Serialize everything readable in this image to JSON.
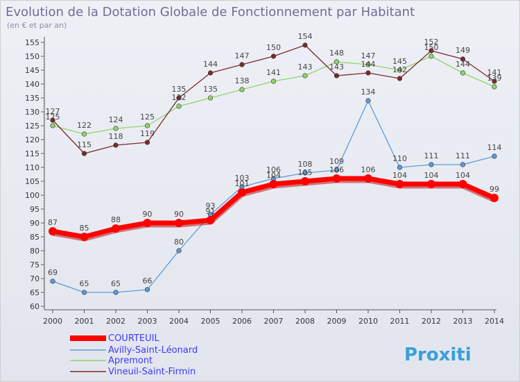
{
  "chart_data": {
    "type": "line",
    "title": "Evolution de la Dotation Globale de Fonctionnement par Habitant",
    "subtitle": "(en € et par an)",
    "categories": [
      "2000",
      "2001",
      "2002",
      "2003",
      "2004",
      "2005",
      "2006",
      "2007",
      "2008",
      "2009",
      "2010",
      "2011",
      "2012",
      "2013",
      "2014"
    ],
    "ylim": [
      60,
      155
    ],
    "yticks": [
      60,
      65,
      70,
      75,
      80,
      85,
      90,
      95,
      100,
      105,
      110,
      115,
      120,
      125,
      130,
      135,
      140,
      145,
      150,
      155
    ],
    "grid": false,
    "legend_position": "bottom-left",
    "series": [
      {
        "name": "COURTEUIL",
        "color": "#ff0000",
        "values": [
          87,
          85,
          88,
          90,
          90,
          91,
          101,
          104,
          105,
          106,
          106,
          104,
          104,
          104,
          99
        ]
      },
      {
        "name": "Avilly-Saint-Léonard",
        "color": "#5b9bd5",
        "values": [
          69,
          65,
          65,
          66,
          80,
          93,
          103,
          106,
          108,
          109,
          134,
          110,
          111,
          111,
          114
        ]
      },
      {
        "name": "Apremont",
        "color": "#8fd46b",
        "values": [
          125,
          122,
          124,
          125,
          132,
          135,
          138,
          141,
          143,
          148,
          147,
          145,
          150,
          144,
          139
        ]
      },
      {
        "name": "Vineuil-Saint-Firmin",
        "color": "#7a2a2a",
        "values": [
          127,
          115,
          118,
          119,
          135,
          144,
          147,
          150,
          154,
          143,
          144,
          142,
          152,
          149,
          141
        ]
      }
    ],
    "point_labels": {
      "COURTEUIL": [
        "87",
        "85",
        "88",
        "90",
        "90",
        "91",
        "101",
        "104",
        "105",
        "106",
        "106",
        "104",
        "104",
        "104",
        "99"
      ],
      "Avilly-Saint-Léonard": [
        "69",
        "65",
        "65",
        "66",
        "80",
        "93",
        "103",
        "106",
        "108",
        "109",
        "134",
        "110",
        "111",
        "111",
        "114"
      ],
      "Apremont": [
        "125",
        "122",
        "124",
        "125",
        "132",
        "135",
        "138",
        "141",
        "143",
        "148",
        "147",
        "145",
        "150",
        "144",
        "139"
      ],
      "Vineuil-Saint-Firmin": [
        "127",
        "115",
        "118",
        "119",
        "135",
        "144",
        "147",
        "150",
        "154",
        "143",
        "144",
        "142",
        "152",
        "149",
        "141"
      ]
    }
  },
  "watermark": "Proxiti"
}
